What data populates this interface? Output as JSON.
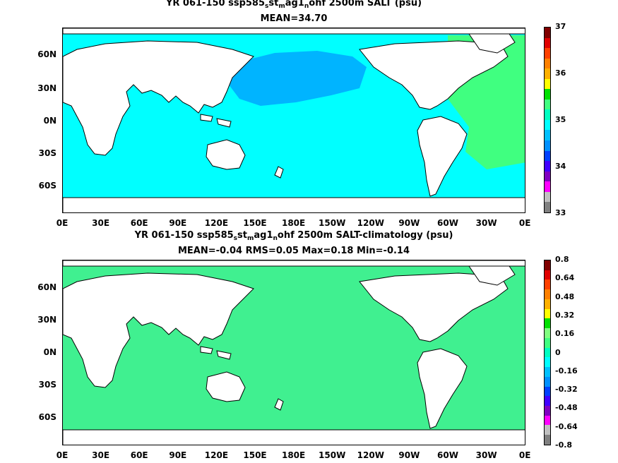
{
  "panels": [
    {
      "title_parts": [
        "YR 061-150 ssp585",
        "s",
        "st",
        "m",
        "ag1",
        "n",
        "ohf 2500m SALT (psu)"
      ],
      "subtitle": "MEAN=34.70",
      "colorbar": {
        "labels": [
          "37",
          "36",
          "35",
          "34",
          "33"
        ],
        "colors": [
          "#800000",
          "#e00000",
          "#ff4000",
          "#ff8000",
          "#ffb000",
          "#ffff00",
          "#00e000",
          "#40ff80",
          "#00ffc0",
          "#00ffff",
          "#00c0ff",
          "#0090ff",
          "#0040ff",
          "#4000ff",
          "#8000c0",
          "#ff00ff",
          "#c0c0c0",
          "#808080"
        ]
      },
      "ocean_color": "#00ffff",
      "pacific_color": "#00b4ff",
      "atlantic_color": "#40ff80"
    },
    {
      "title_parts": [
        "YR 061-150 ssp585",
        "s",
        "st",
        "m",
        "ag1",
        "n",
        "ohf 2500m SALT-climatology (psu)"
      ],
      "subtitle": "MEAN=-0.04   RMS=0.05   Max=0.18   Min=-0.14",
      "colorbar": {
        "labels": [
          "0.8",
          "0.64",
          "0.48",
          "0.32",
          "0.16",
          "0",
          "-0.16",
          "-0.32",
          "-0.48",
          "-0.64",
          "-0.8"
        ],
        "colors": [
          "#800000",
          "#e00000",
          "#ff4000",
          "#ff8000",
          "#ffb000",
          "#ffff00",
          "#00e000",
          "#80ff80",
          "#40ff80",
          "#00ffc0",
          "#00ffff",
          "#00c0ff",
          "#0090ff",
          "#0040ff",
          "#4000ff",
          "#8000c0",
          "#ff00ff",
          "#c0c0c0",
          "#808080"
        ]
      },
      "ocean_color": "#40f090",
      "pacific_color": "#40f090",
      "atlantic_color": "#40f090"
    }
  ],
  "lat_labels": [
    "60N",
    "30N",
    "0N",
    "30S",
    "60S"
  ],
  "lon_labels": [
    "0E",
    "30E",
    "60E",
    "90E",
    "120E",
    "150E",
    "180E",
    "150W",
    "120W",
    "90W",
    "60W",
    "30W",
    "0E"
  ]
}
